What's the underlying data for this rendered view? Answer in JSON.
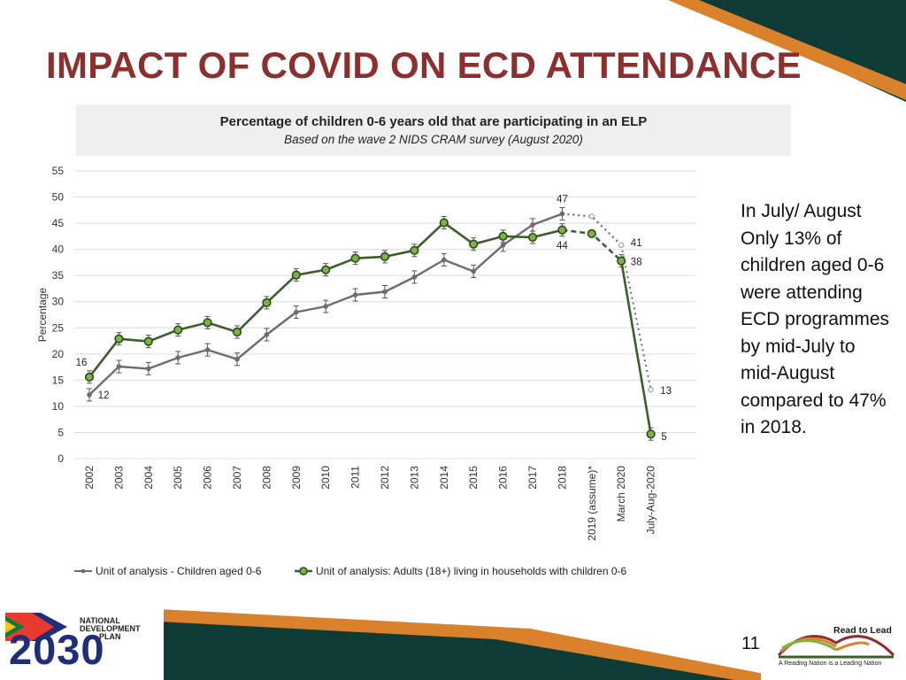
{
  "slide": {
    "title": "IMPACT OF COVID ON ECD ATTENDANCE",
    "page_number": "11",
    "side_text": "In July/ August Only 13% of children aged 0-6 were attending ECD programmes by mid-July to mid-August compared to 47% in 2018.",
    "colors": {
      "title": "#8e2f2f",
      "accent_orange": "#d9822b",
      "accent_teal": "#0e3b35"
    }
  },
  "logos": {
    "ndp": {
      "line1": "NATIONAL",
      "line2": "DEVELOPMENT",
      "line3": "PLAN",
      "year": "2030"
    },
    "reading": {
      "title": "Read to Lead",
      "tagline": "A Reading Nation is a Leading Nation"
    }
  },
  "chart_data": {
    "type": "line",
    "title": "Percentage of children 0-6 years old that are participating in an ELP",
    "subtitle": "Based on the wave 2 NIDS CRAM survey (August 2020)",
    "ylabel": "Percentage",
    "xlabel": "",
    "ylim": [
      0,
      55
    ],
    "yticks": [
      0,
      5,
      10,
      15,
      20,
      25,
      30,
      35,
      40,
      45,
      50,
      55
    ],
    "grid": true,
    "legend_position": "bottom",
    "categories": [
      "2002",
      "2003",
      "2004",
      "2005",
      "2006",
      "2007",
      "2008",
      "2009",
      "2010",
      "2011",
      "2012",
      "2013",
      "2014",
      "2015",
      "2016",
      "2017",
      "2018",
      "2019 (assume)*",
      "March 2020",
      "July-Aug-2020"
    ],
    "series": [
      {
        "name": "Unit of analysis - Children aged 0-6",
        "color": "#6d6d6d",
        "values": [
          12.2,
          17.6,
          17.2,
          19.3,
          20.8,
          19.0,
          23.7,
          28.0,
          29.1,
          31.3,
          31.9,
          34.7,
          38.0,
          35.8,
          40.8,
          44.7,
          46.8,
          46.3,
          40.8,
          13.2
        ],
        "labels": {
          "0": "12",
          "16": "47",
          "18": "41",
          "19": "13"
        }
      },
      {
        "name": "Unit of analysis: Adults (18+) living in households with children 0-6",
        "color": "#3b5e2b",
        "marker_color": "#7cb342",
        "values": [
          15.6,
          22.9,
          22.4,
          24.6,
          26.0,
          24.2,
          29.8,
          35.1,
          36.1,
          38.3,
          38.6,
          39.8,
          45.1,
          41.0,
          42.5,
          42.3,
          43.7,
          43.0,
          37.8,
          4.7
        ],
        "labels": {
          "0": "16",
          "16": "44",
          "18": "38",
          "19": "5"
        }
      }
    ]
  }
}
